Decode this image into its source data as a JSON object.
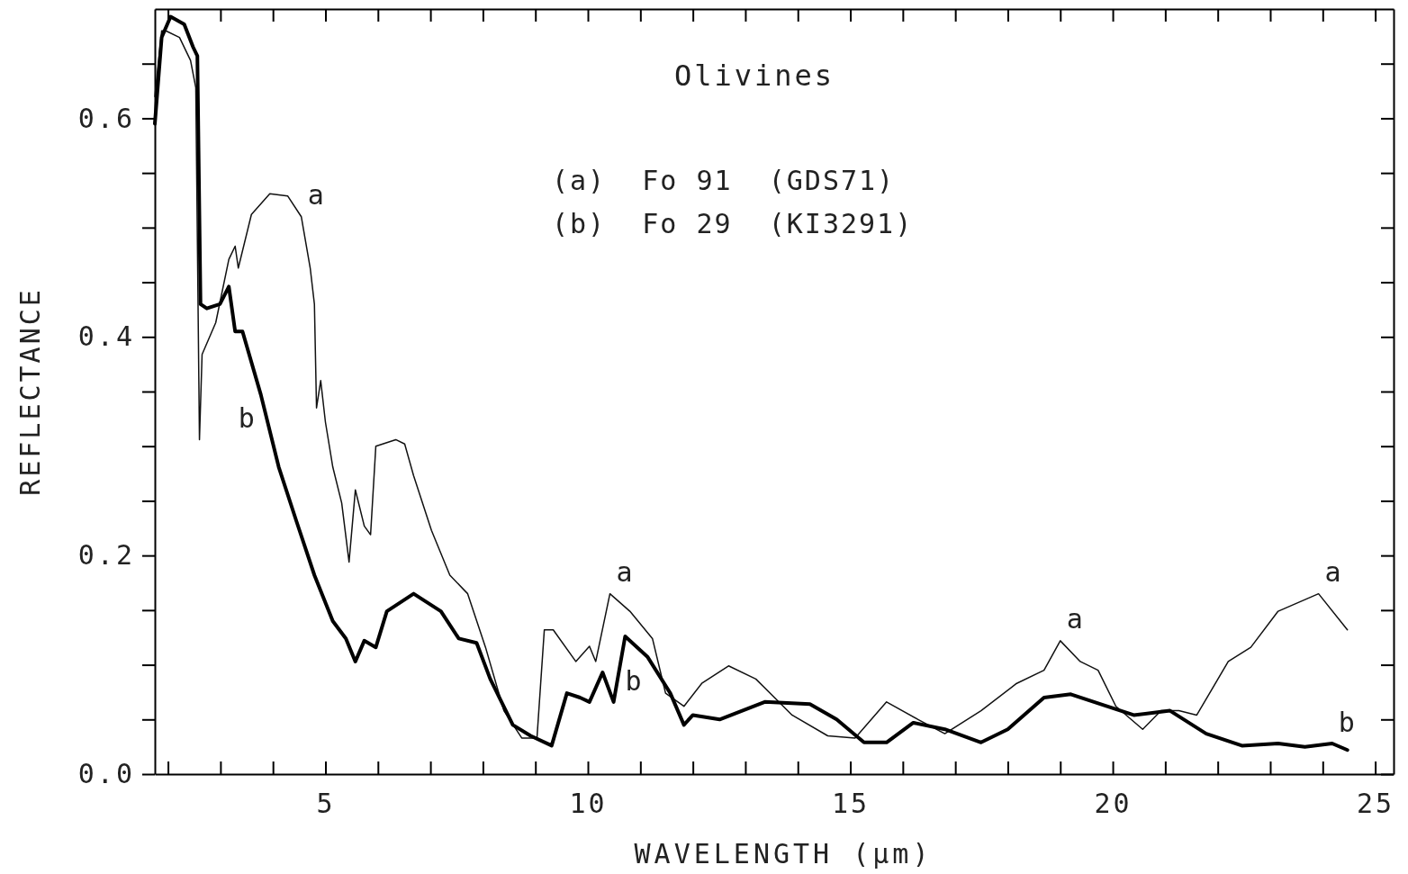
{
  "chart_data": {
    "type": "line",
    "title": "Olivines",
    "xlabel": "WAVELENGTH (μm)",
    "ylabel": "REFLECTANCE",
    "xlim": [
      1.75,
      25.35
    ],
    "ylim": [
      0,
      0.7
    ],
    "xticks": [
      {
        "value": 2,
        "label": null
      },
      {
        "value": 3,
        "label": null
      },
      {
        "value": 4,
        "label": null
      },
      5,
      {
        "value": 6,
        "label": null
      },
      {
        "value": 7,
        "label": null
      },
      {
        "value": 8,
        "label": null
      },
      {
        "value": 9,
        "label": null
      },
      10,
      {
        "value": 11,
        "label": null
      },
      {
        "value": 12,
        "label": null
      },
      {
        "value": 13,
        "label": null
      },
      {
        "value": 14,
        "label": null
      },
      15,
      {
        "value": 16,
        "label": null
      },
      {
        "value": 17,
        "label": null
      },
      {
        "value": 18,
        "label": null
      },
      {
        "value": 19,
        "label": null
      },
      20,
      {
        "value": 21,
        "label": null
      },
      {
        "value": 22,
        "label": null
      },
      {
        "value": 23,
        "label": null
      },
      {
        "value": 24,
        "label": null
      },
      25
    ],
    "yticks": [
      {
        "value": 0,
        "label": "0.0"
      },
      {
        "value": 0.05,
        "label": null
      },
      {
        "value": 0.1,
        "label": null
      },
      {
        "value": 0.15,
        "label": null
      },
      {
        "value": 0.2,
        "label": "0.2"
      },
      {
        "value": 0.25,
        "label": null
      },
      {
        "value": 0.3,
        "label": null
      },
      {
        "value": 0.35,
        "label": null
      },
      {
        "value": 0.4,
        "label": "0.4"
      },
      {
        "value": 0.45,
        "label": null
      },
      {
        "value": 0.5,
        "label": null
      },
      {
        "value": 0.55,
        "label": null
      },
      {
        "value": 0.6,
        "label": "0.6"
      },
      {
        "value": 0.65,
        "label": null
      }
    ],
    "grid": false,
    "marker": "none",
    "line_style": "solid",
    "series": [
      {
        "color": "#111111",
        "x": [
          1.75,
          1.88,
          1.96,
          2.22,
          2.43,
          2.53,
          2.6,
          2.65,
          2.91,
          3.16,
          3.28,
          3.34,
          3.59,
          3.94,
          4.28,
          4.54,
          4.71,
          4.79,
          4.83,
          4.91,
          5.0,
          5.14,
          5.31,
          5.45,
          5.57,
          5.74,
          5.86,
          5.96,
          6.34,
          6.51,
          6.68,
          7.02,
          7.37,
          7.71,
          8.05,
          8.4,
          8.74,
          9.03,
          9.17,
          9.34,
          9.77,
          10.03,
          10.15,
          10.42,
          10.8,
          11.23,
          11.48,
          11.83,
          12.17,
          12.68,
          13.2,
          13.89,
          14.57,
          15.09,
          15.69,
          16.29,
          16.8,
          17.49,
          18.17,
          18.69,
          19.0,
          19.38,
          19.72,
          20.06,
          20.57,
          20.92,
          21.26,
          21.6,
          22.2,
          22.63,
          23.15,
          23.92,
          24.47
        ],
        "values": [
          0.62,
          0.68,
          0.68,
          0.674,
          0.653,
          0.628,
          0.306,
          0.384,
          0.413,
          0.471,
          0.483,
          0.463,
          0.512,
          0.531,
          0.529,
          0.51,
          0.463,
          0.43,
          0.335,
          0.36,
          0.322,
          0.281,
          0.248,
          0.194,
          0.26,
          0.227,
          0.219,
          0.3,
          0.306,
          0.302,
          0.273,
          0.223,
          0.182,
          0.165,
          0.116,
          0.058,
          0.033,
          0.033,
          0.132,
          0.132,
          0.103,
          0.117,
          0.103,
          0.165,
          0.149,
          0.124,
          0.074,
          0.062,
          0.083,
          0.099,
          0.087,
          0.054,
          0.035,
          0.033,
          0.066,
          0.05,
          0.037,
          0.058,
          0.083,
          0.095,
          0.122,
          0.103,
          0.095,
          0.062,
          0.041,
          0.058,
          0.058,
          0.054,
          0.103,
          0.116,
          0.149,
          0.165,
          0.132
        ]
      },
      {
        "color": "#000000",
        "x": [
          1.75,
          1.88,
          2.05,
          2.31,
          2.48,
          2.56,
          2.62,
          2.74,
          2.99,
          3.16,
          3.28,
          3.42,
          3.77,
          4.11,
          4.45,
          4.79,
          5.14,
          5.39,
          5.57,
          5.74,
          5.96,
          6.17,
          6.68,
          7.2,
          7.54,
          7.88,
          8.14,
          8.57,
          8.91,
          9.31,
          9.6,
          9.85,
          10.03,
          10.28,
          10.49,
          10.71,
          11.14,
          11.57,
          11.83,
          12.0,
          12.51,
          13.37,
          14.23,
          14.74,
          15.26,
          15.69,
          16.2,
          16.8,
          17.49,
          18.0,
          18.69,
          19.2,
          19.89,
          20.4,
          21.09,
          21.78,
          22.46,
          23.15,
          23.66,
          24.18,
          24.47
        ],
        "values": [
          0.595,
          0.674,
          0.693,
          0.686,
          0.665,
          0.657,
          0.43,
          0.426,
          0.43,
          0.446,
          0.405,
          0.405,
          0.347,
          0.281,
          0.231,
          0.182,
          0.14,
          0.124,
          0.103,
          0.122,
          0.116,
          0.149,
          0.165,
          0.149,
          0.124,
          0.12,
          0.087,
          0.045,
          0.035,
          0.026,
          0.074,
          0.07,
          0.066,
          0.093,
          0.066,
          0.126,
          0.107,
          0.074,
          0.045,
          0.054,
          0.05,
          0.066,
          0.064,
          0.05,
          0.029,
          0.029,
          0.047,
          0.041,
          0.029,
          0.041,
          0.07,
          0.073,
          0.062,
          0.054,
          0.058,
          0.037,
          0.026,
          0.028,
          0.025,
          0.028,
          0.022
        ]
      }
    ],
    "annotations": [
      "(a)  Fo 91  (GDS71)",
      "(b)  Fo 29  (KI3291)",
      {
        "text": "a",
        "x": 4.54,
        "y": 0.51
      },
      {
        "text": "b",
        "x": 3.77,
        "y": 0.347
      },
      {
        "text": "a",
        "x": 10.42,
        "y": 0.165
      },
      {
        "text": "b",
        "x": 11.14,
        "y": 0.107
      },
      {
        "text": "a",
        "x": 19.0,
        "y": 0.122
      },
      {
        "text": "a",
        "x": 23.92,
        "y": 0.165
      },
      {
        "text": "b",
        "x": 24.18,
        "y": 0.028
      }
    ]
  }
}
